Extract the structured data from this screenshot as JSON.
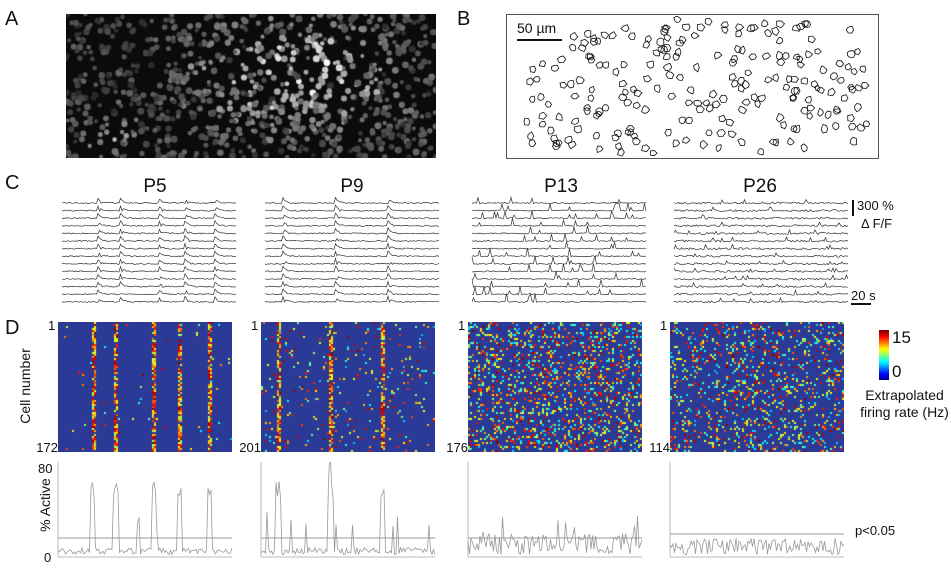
{
  "panels": {
    "A": {
      "label": "A"
    },
    "B": {
      "label": "B",
      "scale_bar": "50 µm"
    },
    "C": {
      "label": "C",
      "scale_amplitude": "300 %",
      "scale_unit": "Δ F/F",
      "scale_time": "20 s"
    },
    "D": {
      "label": "D",
      "y_label": "Cell number",
      "activity_label": "% Active",
      "activity_ymax": "80",
      "activity_ymin": "0",
      "threshold_label": "p<0.05",
      "colorbar": {
        "max": "15",
        "min": "0",
        "label": "Extrapolated firing rate (Hz)"
      }
    }
  },
  "ages": [
    {
      "name": "P5",
      "cells_first": "1",
      "cells_last": "172"
    },
    {
      "name": "P9",
      "cells_first": "1",
      "cells_last": "201"
    },
    {
      "name": "P13",
      "cells_first": "1",
      "cells_last": "176"
    },
    {
      "name": "P26",
      "cells_first": "1",
      "cells_last": "114"
    }
  ],
  "colors": {
    "heatmap_background": "#2b3a97",
    "trace": "#333333",
    "activity": "#999999"
  }
}
